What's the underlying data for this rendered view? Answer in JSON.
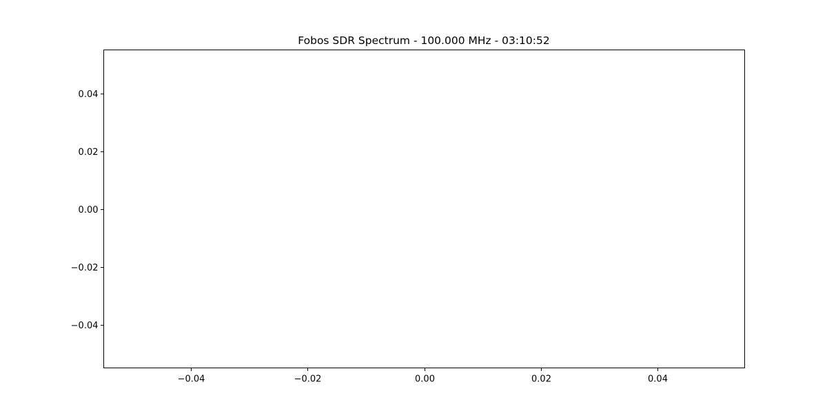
{
  "chart_data": {
    "type": "line",
    "title": "Fobos SDR Spectrum - 100.000 MHz - 03:10:52",
    "xlabel": "",
    "ylabel": "",
    "series": [
      {
        "x": [],
        "y": []
      }
    ],
    "xlim": [
      -0.055,
      0.055
    ],
    "ylim": [
      -0.055,
      0.055
    ],
    "xticks": [
      -0.04,
      -0.02,
      0.0,
      0.02,
      0.04
    ],
    "yticks": [
      -0.04,
      -0.02,
      0.0,
      0.02,
      0.04
    ],
    "xtick_labels": [
      "−0.04",
      "−0.02",
      "0.00",
      "0.02",
      "0.04"
    ],
    "ytick_labels": [
      "−0.04",
      "−0.02",
      "0.00",
      "0.02",
      "0.04"
    ],
    "grid": false,
    "legend": "none",
    "colors": {
      "background": "#ffffff",
      "axes": "#000000",
      "text": "#000000"
    }
  }
}
